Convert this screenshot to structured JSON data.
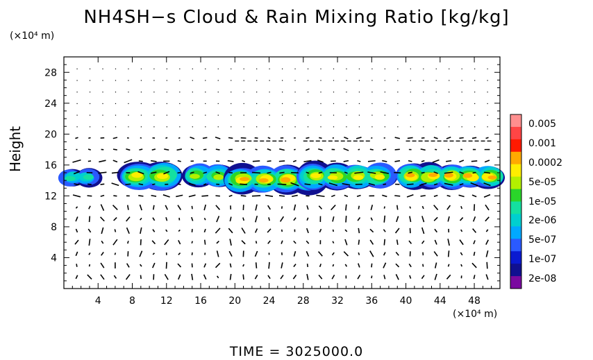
{
  "chart_data": {
    "type": "heatmap",
    "title": "NH4SH−s Cloud & Rain Mixing Ratio [kg/kg]",
    "ylabel": "Height",
    "x_unit": "(×10⁴ m)",
    "y_unit": "(×10⁴ m)",
    "xlim": [
      0,
      51
    ],
    "ylim": [
      0,
      30
    ],
    "x_ticks": [
      4,
      8,
      12,
      16,
      20,
      24,
      28,
      32,
      36,
      40,
      44,
      48
    ],
    "y_ticks": [
      4,
      8,
      12,
      16,
      20,
      24,
      28
    ],
    "colorbar": {
      "labels": [
        "0.005",
        "0.001",
        "0.0002",
        "5e-05",
        "1e-05",
        "2e-06",
        "5e-07",
        "1e-07",
        "2e-08"
      ],
      "colors": [
        "#ff8f8f",
        "#ff4545",
        "#ff1a00",
        "#ffaa00",
        "#ffee00",
        "#b4f000",
        "#2ad62a",
        "#14e0a0",
        "#00cfcf",
        "#00a8ff",
        "#2a5aff",
        "#0a1ad0",
        "#101090",
        "#7a0aa0"
      ]
    },
    "cloud_regions": [
      {
        "x": [
          0,
          3.5
        ],
        "y": [
          13.2,
          15.6
        ],
        "peak": "2e-06"
      },
      {
        "x": [
          7,
          13
        ],
        "y": [
          12.6,
          16.5
        ],
        "peak": "5e-05"
      },
      {
        "x": [
          14.5,
          19
        ],
        "y": [
          13.0,
          16.2
        ],
        "peak": "1e-05"
      },
      {
        "x": [
          19.5,
          30
        ],
        "y": [
          12.3,
          16.0
        ],
        "peak": "0.0002"
      },
      {
        "x": [
          28,
          38
        ],
        "y": [
          12.8,
          16.3
        ],
        "peak": "5e-05"
      },
      {
        "x": [
          39.5,
          51
        ],
        "y": [
          12.9,
          16.2
        ],
        "peak": "0.0002"
      }
    ],
    "time_label": "TIME  =  3025000.0"
  }
}
